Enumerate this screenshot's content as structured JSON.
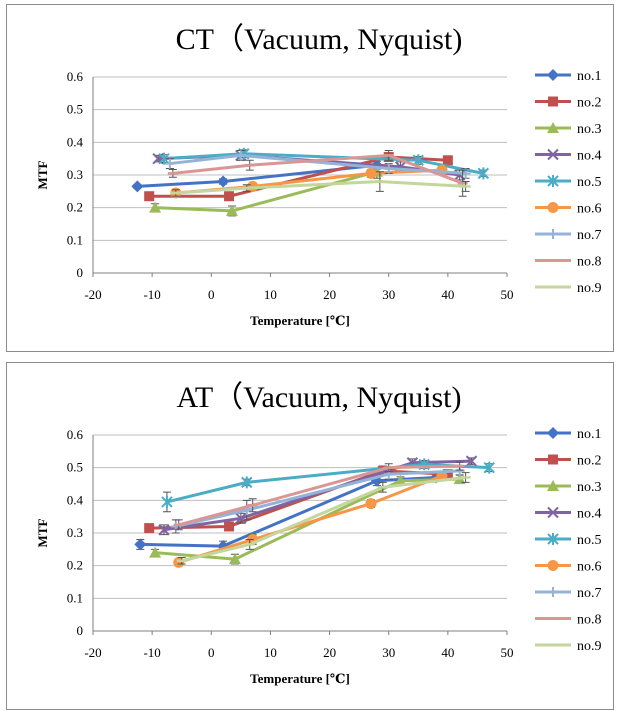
{
  "chart_data": [
    {
      "type": "line",
      "title": "CT（Vacuum, Nyquist)",
      "xlabel": "Temperature [℃]",
      "ylabel": "MTF",
      "xlim": [
        -20,
        50
      ],
      "ylim": [
        0,
        0.6
      ],
      "xticks": [
        "-20",
        "-10",
        "0",
        "10",
        "20",
        "30",
        "40",
        "50"
      ],
      "yticks": [
        "0",
        "0.1",
        "0.2",
        "0.3",
        "0.4",
        "0.5",
        "0.6"
      ],
      "grid": "horizontal",
      "legend": "right",
      "series": [
        {
          "name": "no.1",
          "color": "#4472C4",
          "marker": "diamond",
          "x": [
            -12.5,
            2,
            28
          ],
          "y": [
            0.265,
            0.28,
            0.33
          ],
          "err": [
            0.005,
            0.008,
            0.012
          ]
        },
        {
          "name": "no.2",
          "color": "#C0504D",
          "marker": "square",
          "x": [
            -10.5,
            3,
            30,
            40
          ],
          "y": [
            0.235,
            0.235,
            0.355,
            0.345
          ],
          "err": [
            0.01,
            0.01,
            0.012,
            0.01
          ]
        },
        {
          "name": "no.3",
          "color": "#9BBB59",
          "marker": "triangle",
          "x": [
            -9.5,
            3.5,
            28
          ],
          "y": [
            0.2,
            0.19,
            0.31
          ],
          "err": [
            0.012,
            0.015,
            0.02
          ]
        },
        {
          "name": "no.4",
          "color": "#8064A2",
          "marker": "x",
          "x": [
            -9,
            5,
            32,
            42
          ],
          "y": [
            0.35,
            0.36,
            0.325,
            0.3
          ],
          "err": [
            0.01,
            0.015,
            0.015,
            0.015
          ]
        },
        {
          "name": "no.5",
          "color": "#4BACC6",
          "marker": "star",
          "x": [
            -8,
            5.5,
            35,
            46
          ],
          "y": [
            0.35,
            0.365,
            0.345,
            0.305
          ],
          "err": [
            0.012,
            0.012,
            0.012,
            0.01
          ]
        },
        {
          "name": "no.6",
          "color": "#F79646",
          "marker": "circle",
          "x": [
            -6,
            7,
            27,
            39
          ],
          "y": [
            0.245,
            0.265,
            0.305,
            0.315
          ],
          "err": [
            0.01,
            0.01,
            0.012,
            0.012
          ]
        },
        {
          "name": "no.7",
          "color": "#95B3D7",
          "marker": "plus",
          "x": [
            -7,
            5,
            30,
            43
          ],
          "y": [
            0.335,
            0.36,
            0.32,
            0.305
          ],
          "err": [
            0.015,
            0.015,
            0.015,
            0.015
          ]
        },
        {
          "name": "no.8",
          "color": "#D99694",
          "marker": "dash",
          "x": [
            -6.5,
            6.5,
            30,
            42.5
          ],
          "y": [
            0.305,
            0.33,
            0.36,
            0.275
          ],
          "err": [
            0.012,
            0.015,
            0.015,
            0.04
          ]
        },
        {
          "name": "no.9",
          "color": "#C3D69B",
          "marker": "dash",
          "x": [
            -6,
            6,
            28.5,
            43
          ],
          "y": [
            0.245,
            0.26,
            0.28,
            0.265
          ],
          "err": [
            0.01,
            0.01,
            0.03,
            0.015
          ]
        }
      ]
    },
    {
      "type": "line",
      "title": "AT（Vacuum, Nyquist)",
      "xlabel": "Temperature [℃]",
      "ylabel": "MTF",
      "xlim": [
        -20,
        50
      ],
      "ylim": [
        0,
        0.6
      ],
      "xticks": [
        "-20",
        "-10",
        "0",
        "10",
        "20",
        "30",
        "40",
        "50"
      ],
      "yticks": [
        "0",
        "0.1",
        "0.2",
        "0.3",
        "0.4",
        "0.5",
        "0.6"
      ],
      "grid": "horizontal",
      "legend": "right",
      "series": [
        {
          "name": "no.1",
          "color": "#4472C4",
          "marker": "diamond",
          "x": [
            -12,
            2,
            28,
            38
          ],
          "y": [
            0.265,
            0.26,
            0.46,
            0.47
          ],
          "err": [
            0.015,
            0.015,
            0.015,
            0.012
          ]
        },
        {
          "name": "no.2",
          "color": "#C0504D",
          "marker": "square",
          "x": [
            -10.5,
            3,
            29,
            40
          ],
          "y": [
            0.315,
            0.32,
            0.49,
            0.48
          ],
          "err": [
            0.012,
            0.012,
            0.015,
            0.012
          ]
        },
        {
          "name": "no.3",
          "color": "#9BBB59",
          "marker": "triangle",
          "x": [
            -9.5,
            4,
            32,
            42
          ],
          "y": [
            0.24,
            0.22,
            0.46,
            0.465
          ],
          "err": [
            0.01,
            0.015,
            0.012,
            0.012
          ]
        },
        {
          "name": "no.4",
          "color": "#8064A2",
          "marker": "x",
          "x": [
            -8,
            5,
            34,
            44
          ],
          "y": [
            0.31,
            0.345,
            0.515,
            0.52
          ],
          "err": [
            0.015,
            0.015,
            0.012,
            0.01
          ]
        },
        {
          "name": "no.5",
          "color": "#4BACC6",
          "marker": "star",
          "x": [
            -7.5,
            6,
            36,
            47
          ],
          "y": [
            0.395,
            0.455,
            0.51,
            0.5
          ],
          "err": [
            0.03,
            0.01,
            0.012,
            0.012
          ]
        },
        {
          "name": "no.6",
          "color": "#F79646",
          "marker": "circle",
          "x": [
            -5.5,
            7,
            27,
            39
          ],
          "y": [
            0.21,
            0.28,
            0.39,
            0.475
          ],
          "err": [
            0.01,
            0.015,
            0.012,
            0.012
          ]
        },
        {
          "name": "no.7",
          "color": "#95B3D7",
          "marker": "plus",
          "x": [
            -6,
            6,
            30,
            42
          ],
          "y": [
            0.32,
            0.37,
            0.48,
            0.49
          ],
          "err": [
            0.02,
            0.03,
            0.015,
            0.012
          ]
        },
        {
          "name": "no.8",
          "color": "#D99694",
          "marker": "dash",
          "x": [
            -5.5,
            7,
            30,
            42
          ],
          "y": [
            0.325,
            0.385,
            0.5,
            0.505
          ],
          "err": [
            0.015,
            0.02,
            0.012,
            0.012
          ]
        },
        {
          "name": "no.9",
          "color": "#C3D69B",
          "marker": "dash",
          "x": [
            -5,
            6.5,
            29,
            43
          ],
          "y": [
            0.215,
            0.265,
            0.44,
            0.47
          ],
          "err": [
            0.01,
            0.015,
            0.015,
            0.015
          ]
        }
      ]
    }
  ]
}
